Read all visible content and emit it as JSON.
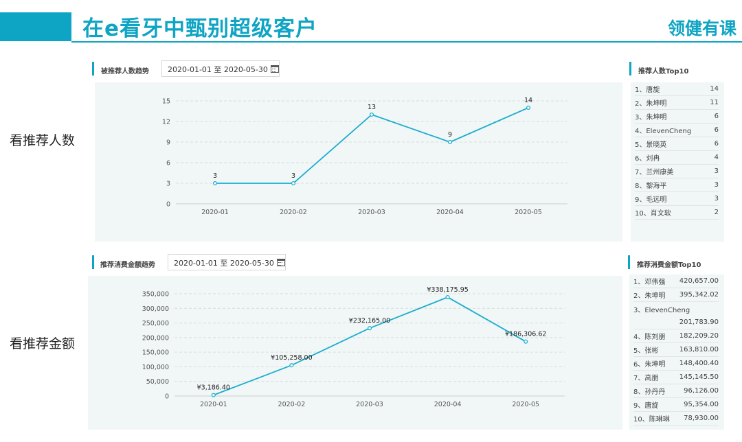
{
  "header": {
    "title": "在e看牙中甄别超级客户",
    "brand": "领健有课"
  },
  "side_labels": {
    "referrals": "看推荐人数",
    "amount": "看推荐金额"
  },
  "section_top": {
    "title": "被推荐人数趋势",
    "date_range": "2020-01-01 至 2020-05-30"
  },
  "section_bottom": {
    "title": "推荐消费金额趋势",
    "date_range": "2020-01-01 至 2020-05-30"
  },
  "rank_top": {
    "title": "推荐人数Top10",
    "rows": [
      {
        "name": "1、唐旋",
        "value": "14"
      },
      {
        "name": "2、朱坤明",
        "value": "11"
      },
      {
        "name": "3、朱坤明",
        "value": "6"
      },
      {
        "name": "4、ElevenCheng",
        "value": "6"
      },
      {
        "name": "5、景晓英",
        "value": "6"
      },
      {
        "name": "6、刘冉",
        "value": "4"
      },
      {
        "name": "7、兰州康美",
        "value": "3"
      },
      {
        "name": "8、黎海平",
        "value": "3"
      },
      {
        "name": "9、毛远明",
        "value": "3"
      },
      {
        "name": "10、肖文软",
        "value": "2"
      }
    ]
  },
  "rank_bottom": {
    "title": "推荐消费金额Top10",
    "rows": [
      {
        "name": "1、邓伟强",
        "value": "420,657.00"
      },
      {
        "name": "2、朱坤明",
        "value": "395,342.02"
      },
      {
        "name": "3、ElevenCheng",
        "value": "201,783.90"
      },
      {
        "name": "4、陈刘朋",
        "value": "182,209.20"
      },
      {
        "name": "5、张彬",
        "value": "163,810.00"
      },
      {
        "name": "6、朱坤明",
        "value": "148,400.40"
      },
      {
        "name": "7、高朋",
        "value": "145,145.50"
      },
      {
        "name": "8、孙丹丹",
        "value": "96,126.00"
      },
      {
        "name": "9、唐旋",
        "value": "95,354.00"
      },
      {
        "name": "10、陈琳琳",
        "value": "78,930.00"
      }
    ]
  },
  "chart_data": [
    {
      "type": "line",
      "categories": [
        "2020-01",
        "2020-02",
        "2020-03",
        "2020-04",
        "2020-05"
      ],
      "values": [
        3,
        3,
        13,
        9,
        14
      ],
      "data_labels": [
        "3",
        "3",
        "13",
        "9",
        "14"
      ],
      "yticks": [
        "0",
        "3",
        "6",
        "9",
        "12",
        "15"
      ],
      "ylim": [
        0,
        15
      ],
      "color": "#1aaecd",
      "grid": true
    },
    {
      "type": "line",
      "categories": [
        "2020-01",
        "2020-02",
        "2020-03",
        "2020-04",
        "2020-05"
      ],
      "values": [
        3186.4,
        105258.0,
        232165.0,
        338175.95,
        186306.62
      ],
      "data_labels": [
        "¥3,186.40",
        "¥105,258.00",
        "¥232,165.00",
        "¥338,175.95",
        "¥186,306.62"
      ],
      "yticks": [
        "0",
        "50,000",
        "100,000",
        "150,000",
        "200,000",
        "250,000",
        "300,000",
        "350,000"
      ],
      "ylim": [
        0,
        350000
      ],
      "color": "#1aaecd",
      "grid": true
    }
  ]
}
